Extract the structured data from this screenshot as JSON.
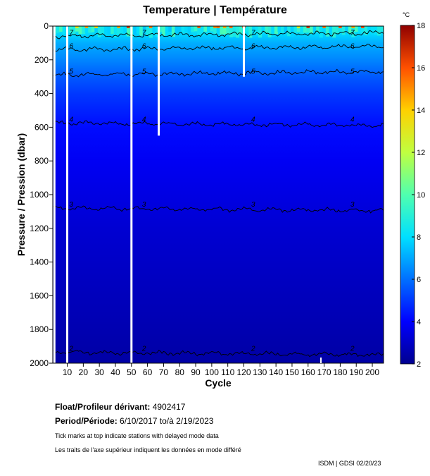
{
  "chart_data": {
    "type": "heatmap",
    "title": "Temperature | Température",
    "xlabel": "Cycle",
    "ylabel": "Pressure / Pression (dbar)",
    "xlim": [
      1,
      207
    ],
    "ylim": [
      0,
      2000
    ],
    "y_inverted": true,
    "x_ticks": [
      10,
      20,
      30,
      40,
      50,
      60,
      70,
      80,
      90,
      100,
      110,
      120,
      130,
      140,
      150,
      160,
      170,
      180,
      190,
      200
    ],
    "y_ticks": [
      0,
      200,
      400,
      600,
      800,
      1000,
      1200,
      1400,
      1600,
      1800,
      2000
    ],
    "colorbar": {
      "unit": "°C",
      "range": [
        2,
        18
      ],
      "ticks": [
        2,
        4,
        6,
        8,
        10,
        12,
        14,
        16,
        18
      ]
    },
    "temperature_profile": [
      {
        "pressure": 0,
        "temperature": 9.0
      },
      {
        "pressure": 50,
        "temperature": 7.8
      },
      {
        "pressure": 100,
        "temperature": 7.1
      },
      {
        "pressure": 200,
        "temperature": 6.4
      },
      {
        "pressure": 300,
        "temperature": 5.6
      },
      {
        "pressure": 400,
        "temperature": 5.0
      },
      {
        "pressure": 600,
        "temperature": 4.2
      },
      {
        "pressure": 800,
        "temperature": 3.8
      },
      {
        "pressure": 1000,
        "temperature": 3.5
      },
      {
        "pressure": 1200,
        "temperature": 3.2
      },
      {
        "pressure": 1400,
        "temperature": 3.0
      },
      {
        "pressure": 1600,
        "temperature": 2.8
      },
      {
        "pressure": 1800,
        "temperature": 2.6
      },
      {
        "pressure": 2000,
        "temperature": 2.4
      }
    ],
    "contours": [
      {
        "level": 7,
        "base_pressure": 60
      },
      {
        "level": 6,
        "base_pressure": 140
      },
      {
        "level": 5,
        "base_pressure": 290
      },
      {
        "level": 4,
        "base_pressure": 575
      },
      {
        "level": 3,
        "base_pressure": 1080
      },
      {
        "level": 2,
        "base_pressure": 1935
      }
    ],
    "missing_cycles": [
      {
        "cycle": 2,
        "pressure_max": 2000
      },
      {
        "cycle": 10,
        "pressure_max": 2000
      },
      {
        "cycle": 50,
        "pressure_max": 2000
      },
      {
        "cycle": 67,
        "pressure_max": 650
      },
      {
        "cycle": 120,
        "pressure_max": 300
      }
    ],
    "delayed_mode_marks": [
      168
    ]
  },
  "info": {
    "float_label": "Float/Profileur dérivant:",
    "float_value": "4902417",
    "period_label": "Period/Période:",
    "period_value": "6/10/2017  to/à  2/19/2023",
    "note_en": "Tick marks at top indicate stations with delayed mode data",
    "note_fr": "Les traits de l'axe supérieur indiquent les données en mode différé",
    "credit": "ISDM | GDSI  02/20/23"
  }
}
